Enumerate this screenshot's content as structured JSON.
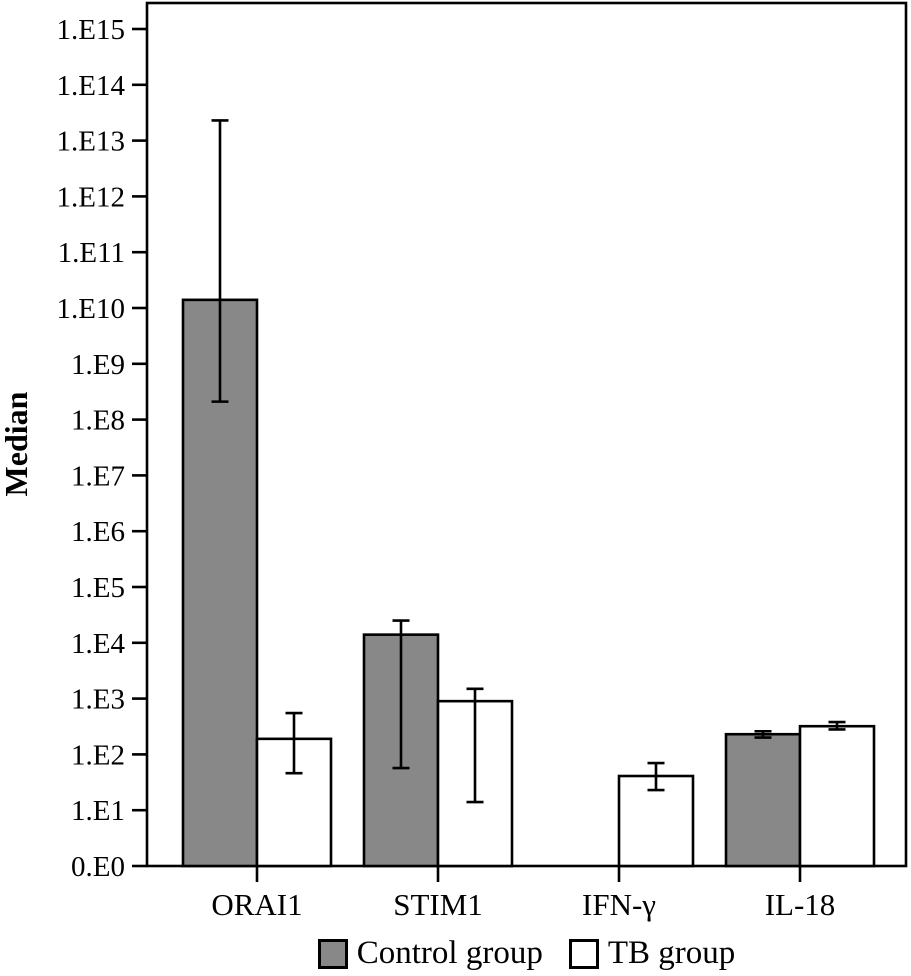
{
  "figure": {
    "background": "#ffffff",
    "axis_color": "#000000"
  },
  "chart_data": {
    "type": "bar",
    "title": "",
    "xlabel": "",
    "ylabel": "Median",
    "y_scale": "log",
    "grid": false,
    "legend_position": "bottom",
    "y_tick_labels": [
      "0.E0",
      "1.E1",
      "1.E2",
      "1.E3",
      "1.E4",
      "1.E5",
      "1.E6",
      "1.E7",
      "1.E8",
      "1.E9",
      "1.E10",
      "1.E11",
      "1.E12",
      "1.E13",
      "1.E14",
      "1.E15"
    ],
    "y_range_exponents": [
      0,
      15
    ],
    "categories": [
      "ORAI1",
      "STIM1",
      "IFN-γ",
      "IL-18"
    ],
    "series": [
      {
        "name": "Control group",
        "color": "#888888",
        "values": [
          14000000000.0,
          14000.0,
          0,
          230.0
        ],
        "error_low": [
          210000000.0,
          57.0,
          null,
          200.0
        ],
        "error_high": [
          23000000000000.0,
          25000.0,
          null,
          260.0
        ]
      },
      {
        "name": "TB group",
        "color": "#ffffff",
        "values": [
          190.0,
          900.0,
          41.0,
          320.0
        ],
        "error_low": [
          46.0,
          14.0,
          23.0,
          280.0
        ],
        "error_high": [
          550.0,
          1500.0,
          70.0,
          380.0
        ]
      }
    ]
  }
}
